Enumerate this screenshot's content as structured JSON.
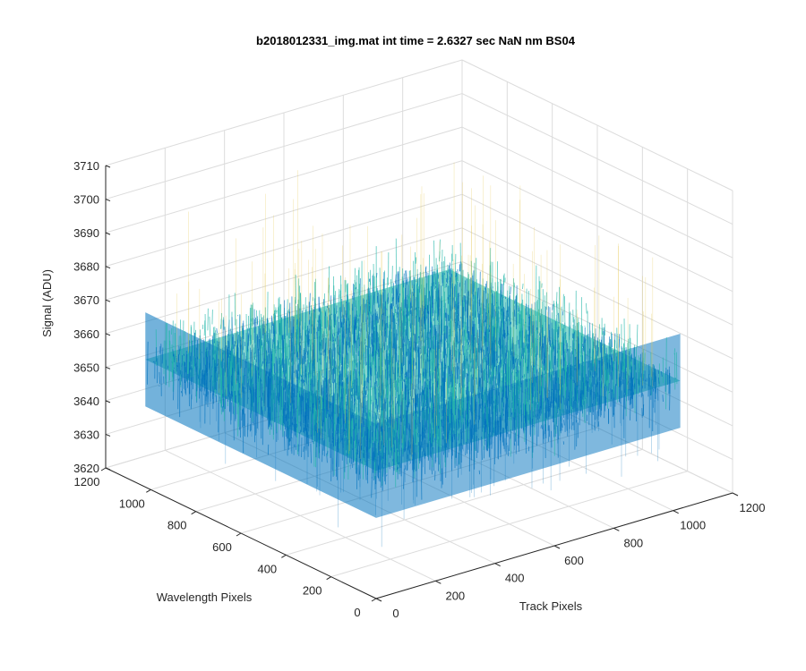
{
  "chart_data": {
    "type": "surface3d",
    "title": "b2018012331_img.mat int time = 2.6327 sec  NaN nm BS04",
    "xlabel": "Track Pixels",
    "ylabel": "Wavelength Pixels",
    "zlabel": "Signal (ADU)",
    "xlim": [
      0,
      1200
    ],
    "ylim": [
      0,
      1200
    ],
    "zlim": [
      3620,
      3710
    ],
    "xticks": [
      "0",
      "200",
      "400",
      "600",
      "800",
      "1000",
      "1200"
    ],
    "yticks": [
      "0",
      "200",
      "400",
      "600",
      "800",
      "1000",
      "1200"
    ],
    "zticks": [
      "3620",
      "3630",
      "3640",
      "3650",
      "3660",
      "3670",
      "3680",
      "3690",
      "3700",
      "3710"
    ],
    "surface": {
      "x_range": [
        0,
        1024
      ],
      "y_range": [
        0,
        1024
      ],
      "mean_signal": 3658,
      "noise_min": 3632,
      "noise_max": 3703,
      "colormap": "parula"
    },
    "grid": true,
    "colors": {
      "axis": "#262626",
      "grid": "#dcdcdc",
      "low": "#0072bd",
      "mid": "#21b6a8",
      "high": "#e6c84b"
    }
  }
}
